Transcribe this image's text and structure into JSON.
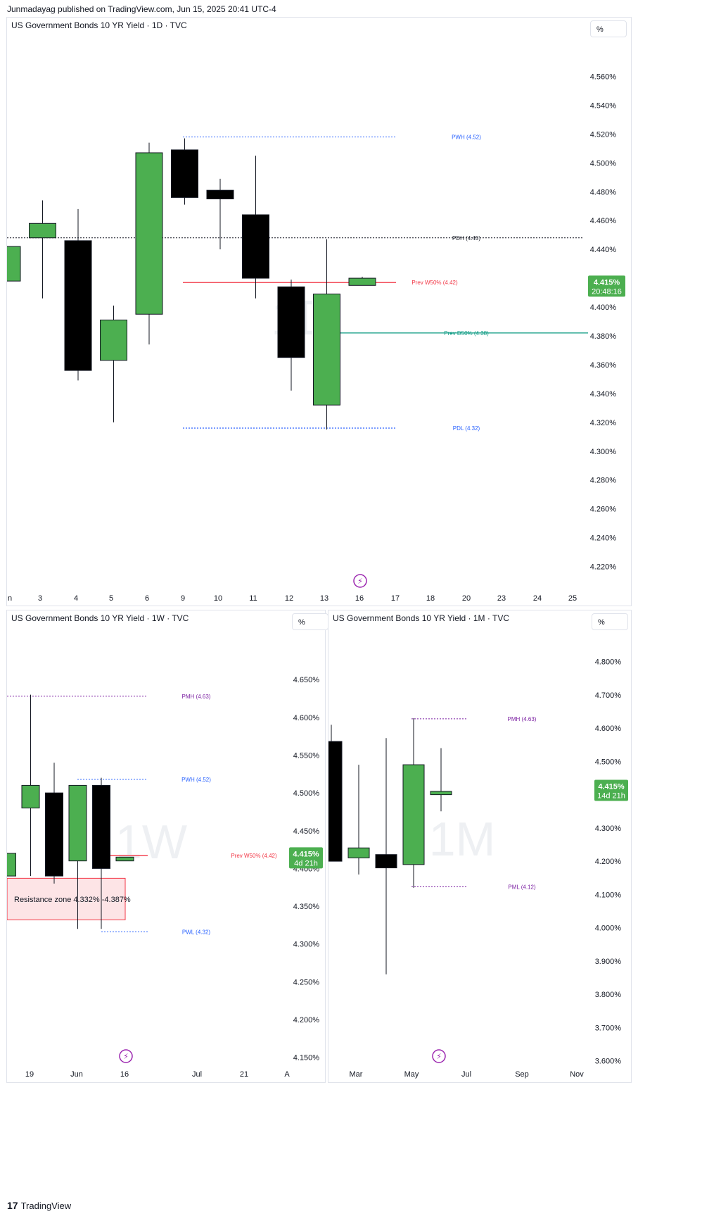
{
  "header": {
    "published": "Junmadayag published on TradingView.com, Jun 15, 2025 20:41 UTC-4"
  },
  "footer": {
    "logo": "17",
    "brand": "TradingView"
  },
  "colors": {
    "bull": "#4caf50",
    "bear": "#000000",
    "resistance_line": "#f23645",
    "support_line": "#089981",
    "level_blue": "#2962ff",
    "level_purple": "#7b1fa2",
    "price_tag": "#4caf50",
    "bolt": "#9c27b0"
  },
  "icons": [
    "lightning-bolt-icon",
    "tradingview-logo-icon"
  ],
  "chart_data": [
    {
      "panel": "daily",
      "type": "candlestick",
      "title": "US Government Bonds 10 YR Yield · 1D · TVC",
      "scale_label": "%",
      "watermark": "1D",
      "ylim": [
        4.21,
        4.57
      ],
      "y_ticks": [
        "4.560%",
        "4.540%",
        "4.520%",
        "4.500%",
        "4.480%",
        "4.460%",
        "4.440%",
        "4.420%",
        "4.400%",
        "4.380%",
        "4.360%",
        "4.340%",
        "4.320%",
        "4.300%",
        "4.280%",
        "4.260%",
        "4.240%",
        "4.220%"
      ],
      "y_tick_values": [
        4.56,
        4.54,
        4.52,
        4.5,
        4.48,
        4.46,
        4.44,
        4.42,
        4.4,
        4.38,
        4.36,
        4.34,
        4.32,
        4.3,
        4.28,
        4.26,
        4.24,
        4.22
      ],
      "x_ticks": [
        "n",
        "3",
        "4",
        "5",
        "6",
        "9",
        "10",
        "11",
        "12",
        "13",
        "16",
        "17",
        "18",
        "20",
        "23",
        "24",
        "25"
      ],
      "candles": [
        {
          "x": "n",
          "o": 4.418,
          "h": 4.442,
          "l": 4.418,
          "c": 4.442
        },
        {
          "x": "3",
          "o": 4.448,
          "h": 4.474,
          "l": 4.406,
          "c": 4.458
        },
        {
          "x": "4",
          "o": 4.446,
          "h": 4.468,
          "l": 4.349,
          "c": 4.356
        },
        {
          "x": "5",
          "o": 4.363,
          "h": 4.401,
          "l": 4.32,
          "c": 4.391
        },
        {
          "x": "6",
          "o": 4.395,
          "h": 4.514,
          "l": 4.374,
          "c": 4.507
        },
        {
          "x": "9",
          "o": 4.509,
          "h": 4.517,
          "l": 4.471,
          "c": 4.476
        },
        {
          "x": "10",
          "o": 4.481,
          "h": 4.489,
          "l": 4.44,
          "c": 4.475
        },
        {
          "x": "11",
          "o": 4.464,
          "h": 4.505,
          "l": 4.406,
          "c": 4.42
        },
        {
          "x": "12",
          "o": 4.414,
          "h": 4.419,
          "l": 4.342,
          "c": 4.365
        },
        {
          "x": "13",
          "o": 4.332,
          "h": 4.447,
          "l": 4.315,
          "c": 4.409
        },
        {
          "x": "16",
          "o": 4.415,
          "h": 4.421,
          "l": 4.415,
          "c": 4.42
        }
      ],
      "levels": [
        {
          "label": "PWH (4.52)",
          "value": 4.518,
          "color": "#2962ff"
        },
        {
          "label": "PDH (4.45)",
          "value": 4.448,
          "color": "#131722"
        },
        {
          "label": "Prev W50% (4.42)",
          "value": 4.417,
          "color": "#f23645"
        },
        {
          "label": "Prev D50% (4.38)",
          "value": 4.382,
          "color": "#089981"
        },
        {
          "label": "PDL (4.32)",
          "value": 4.316,
          "color": "#2962ff"
        }
      ],
      "price_tag": {
        "value": "4.415%",
        "timer": "20:48:16"
      }
    },
    {
      "panel": "weekly",
      "type": "candlestick",
      "title": "US Government Bonds 10 YR Yield · 1W · TVC",
      "scale_label": "%",
      "watermark": "1W",
      "ylim": [
        4.145,
        4.68
      ],
      "y_ticks": [
        "4.650%",
        "4.600%",
        "4.550%",
        "4.500%",
        "4.450%",
        "4.400%",
        "4.350%",
        "4.300%",
        "4.250%",
        "4.200%",
        "4.150%"
      ],
      "y_tick_values": [
        4.65,
        4.6,
        4.55,
        4.5,
        4.45,
        4.4,
        4.35,
        4.3,
        4.25,
        4.2,
        4.15
      ],
      "x_ticks": [
        "19",
        "Jun",
        "16",
        "Jul",
        "21",
        "A"
      ],
      "candles": [
        {
          "o": 4.39,
          "h": 4.42,
          "l": 4.39,
          "c": 4.42
        },
        {
          "o": 4.48,
          "h": 4.63,
          "l": 4.39,
          "c": 4.51
        },
        {
          "o": 4.5,
          "h": 4.54,
          "l": 4.38,
          "c": 4.39
        },
        {
          "o": 4.41,
          "h": 4.51,
          "l": 4.32,
          "c": 4.51
        },
        {
          "o": 4.51,
          "h": 4.52,
          "l": 4.32,
          "c": 4.4
        },
        {
          "o": 4.41,
          "h": 4.415,
          "l": 4.41,
          "c": 4.415
        }
      ],
      "zone": {
        "label": "Resistance zone 4.332% -4.387%",
        "low": 4.332,
        "high": 4.387
      },
      "levels": [
        {
          "label": "PMH (4.63)",
          "value": 4.628,
          "color": "#7b1fa2"
        },
        {
          "label": "PWH (4.52)",
          "value": 4.518,
          "color": "#2962ff"
        },
        {
          "label": "Prev W50% (4.42)",
          "value": 4.417,
          "color": "#f23645"
        },
        {
          "label": "PWL (4.32)",
          "value": 4.316,
          "color": "#2962ff"
        }
      ],
      "price_tag": {
        "value": "4.415%",
        "timer": "4d 21h"
      }
    },
    {
      "panel": "monthly",
      "type": "candlestick",
      "title": "US Government Bonds 10 YR Yield · 1M · TVC",
      "scale_label": "%",
      "watermark": "1M",
      "ylim": [
        3.595,
        4.85
      ],
      "y_ticks": [
        "4.800%",
        "4.700%",
        "4.600%",
        "4.500%",
        "4.300%",
        "4.200%",
        "4.100%",
        "4.000%",
        "3.900%",
        "3.800%",
        "3.700%",
        "3.600%"
      ],
      "y_tick_values": [
        4.8,
        4.7,
        4.6,
        4.5,
        4.3,
        4.2,
        4.1,
        4.0,
        3.9,
        3.8,
        3.7,
        3.6
      ],
      "x_ticks": [
        "Mar",
        "May",
        "Jul",
        "Sep",
        "Nov"
      ],
      "candles": [
        {
          "o": 4.56,
          "h": 4.61,
          "l": 4.2,
          "c": 4.2
        },
        {
          "o": 4.21,
          "h": 4.49,
          "l": 4.16,
          "c": 4.24
        },
        {
          "o": 4.22,
          "h": 4.57,
          "l": 3.86,
          "c": 4.18
        },
        {
          "o": 4.19,
          "h": 4.63,
          "l": 4.12,
          "c": 4.49
        },
        {
          "o": 4.4,
          "h": 4.54,
          "l": 4.35,
          "c": 4.41
        }
      ],
      "levels": [
        {
          "label": "PMH (4.63)",
          "value": 4.628,
          "color": "#7b1fa2"
        },
        {
          "label": "PML (4.12)",
          "value": 4.123,
          "color": "#7b1fa2"
        }
      ],
      "price_tag": {
        "value": "4.415%",
        "timer": "14d 21h"
      }
    }
  ]
}
